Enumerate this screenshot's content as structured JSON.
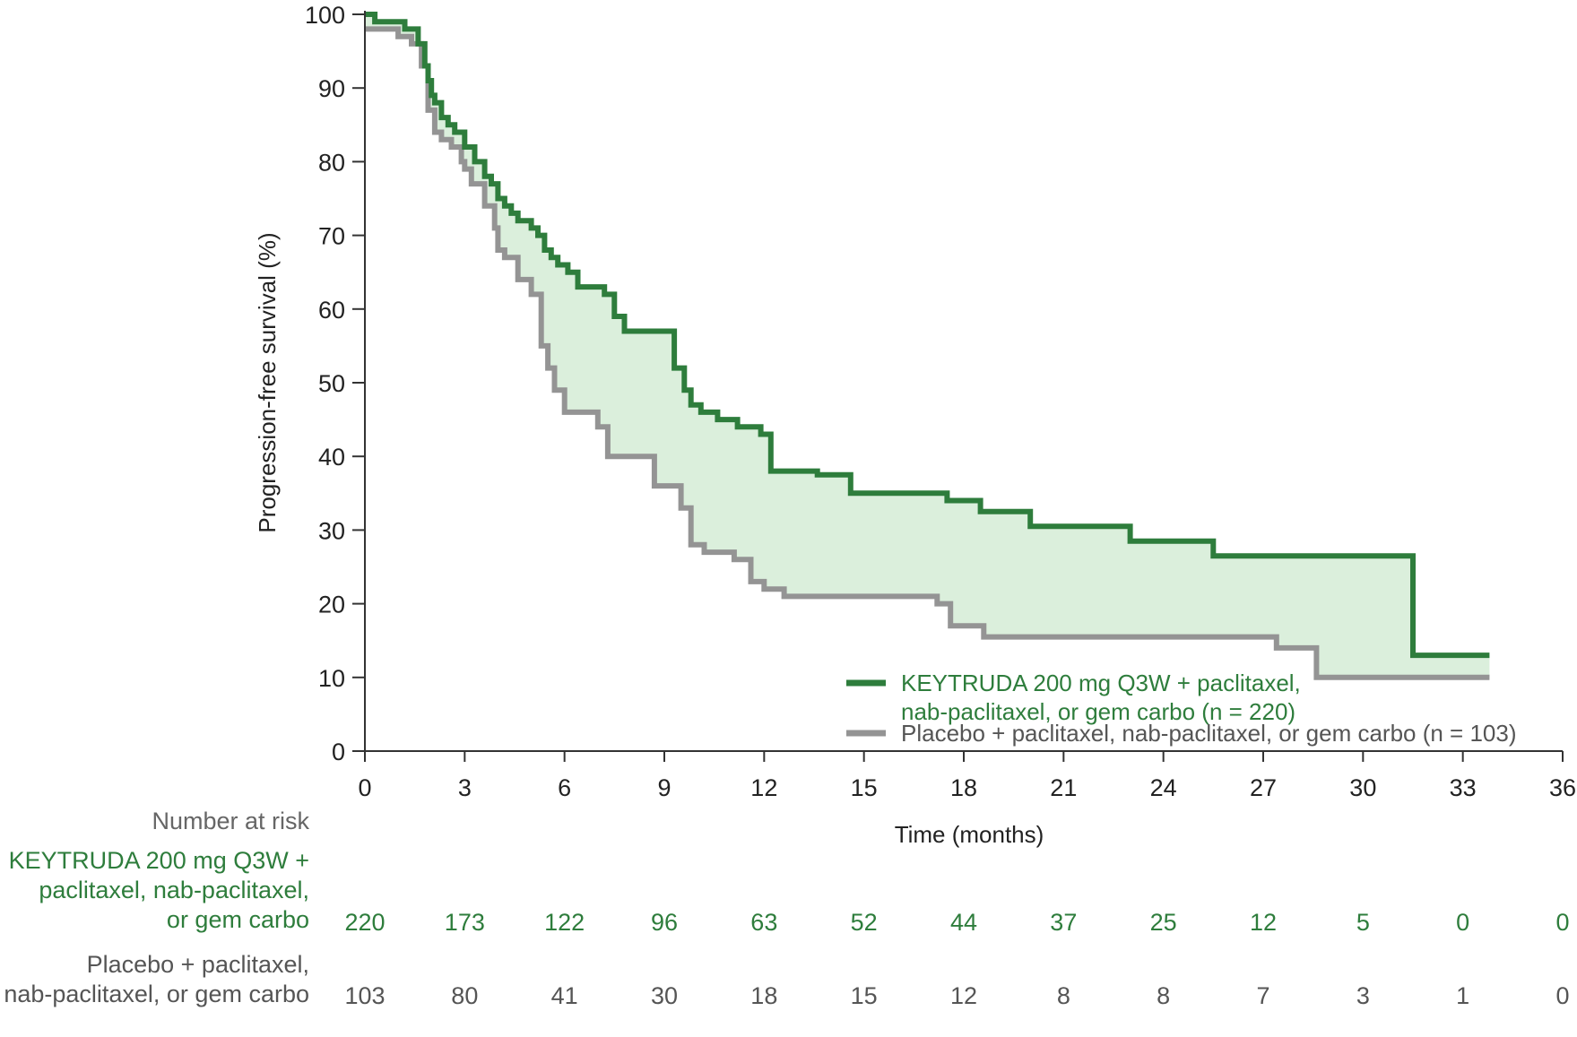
{
  "chart_data": {
    "type": "line",
    "subtype": "kaplan-meier",
    "ylabel": "Progression-free survival (%)",
    "xlabel": "Time (months)",
    "xlim": [
      0,
      36
    ],
    "ylim": [
      0,
      100
    ],
    "x_ticks": [
      0,
      3,
      6,
      9,
      12,
      15,
      18,
      21,
      24,
      27,
      30,
      33,
      36
    ],
    "y_ticks": [
      0,
      10,
      20,
      30,
      40,
      50,
      60,
      70,
      80,
      90,
      100
    ],
    "grid": false,
    "legend_position": "bottom-right",
    "fill_between": true,
    "series": [
      {
        "name": "KEYTRUDA 200 mg Q3W + paclitaxel,\nnab-paclitaxel, or gem carbo (n = 220)",
        "color": "#2e7d3c",
        "x": [
          0,
          0.3,
          1.2,
          1.6,
          1.8,
          1.9,
          2.0,
          2.1,
          2.3,
          2.5,
          2.7,
          3.0,
          3.3,
          3.6,
          3.8,
          4.0,
          4.2,
          4.4,
          4.6,
          5.0,
          5.2,
          5.4,
          5.6,
          5.8,
          6.1,
          6.4,
          7.2,
          7.5,
          7.8,
          9.3,
          9.6,
          9.8,
          10.1,
          10.6,
          11.2,
          11.9,
          12.2,
          13.6,
          14.6,
          17.5,
          18.5,
          20.0,
          23.0,
          25.5,
          31.5
        ],
        "y": [
          100,
          99,
          98,
          96,
          93,
          91,
          89,
          88,
          86,
          85,
          84,
          82,
          80,
          78,
          77,
          75,
          74,
          73,
          72,
          71,
          70,
          68,
          67,
          66,
          65,
          63,
          62,
          59,
          57,
          52,
          49,
          47,
          46,
          45,
          44,
          43,
          38,
          37.5,
          35,
          34,
          32.5,
          30.5,
          28.5,
          26.5,
          13
        ]
      },
      {
        "name": "Placebo + paclitaxel, nab-paclitaxel, or gem carbo (n = 103)",
        "color": "#949494",
        "x": [
          0,
          1.0,
          1.4,
          1.7,
          1.9,
          2.1,
          2.3,
          2.6,
          2.9,
          3.0,
          3.2,
          3.6,
          3.9,
          4.0,
          4.2,
          4.6,
          5.0,
          5.3,
          5.5,
          5.7,
          6.0,
          7.0,
          7.3,
          8.7,
          9.5,
          9.8,
          10.2,
          11.1,
          11.6,
          12.0,
          12.6,
          17.2,
          17.6,
          18.6,
          24.2,
          27.4,
          28.6
        ],
        "y": [
          98,
          97,
          96,
          93,
          87,
          84,
          83,
          82,
          80,
          79,
          77,
          74,
          71,
          68,
          67,
          64,
          62,
          55,
          52,
          49,
          46,
          44,
          40,
          36,
          33,
          28,
          27,
          26,
          23,
          22,
          21,
          20,
          17,
          15.5,
          15.5,
          14,
          10
        ]
      }
    ],
    "number_at_risk": {
      "header": "Number at risk",
      "times": [
        0,
        3,
        6,
        9,
        12,
        15,
        18,
        21,
        24,
        27,
        30,
        33,
        36
      ],
      "rows": [
        {
          "label": "KEYTRUDA 200 mg Q3W +\npaclitaxel, nab-paclitaxel,\nor gem carbo",
          "values": [
            220,
            173,
            122,
            96,
            63,
            52,
            44,
            37,
            25,
            12,
            5,
            0,
            0
          ]
        },
        {
          "label": "Placebo + paclitaxel,\nnab-paclitaxel, or gem carbo",
          "values": [
            103,
            80,
            41,
            30,
            18,
            15,
            12,
            8,
            8,
            7,
            3,
            1,
            0
          ]
        }
      ]
    }
  }
}
